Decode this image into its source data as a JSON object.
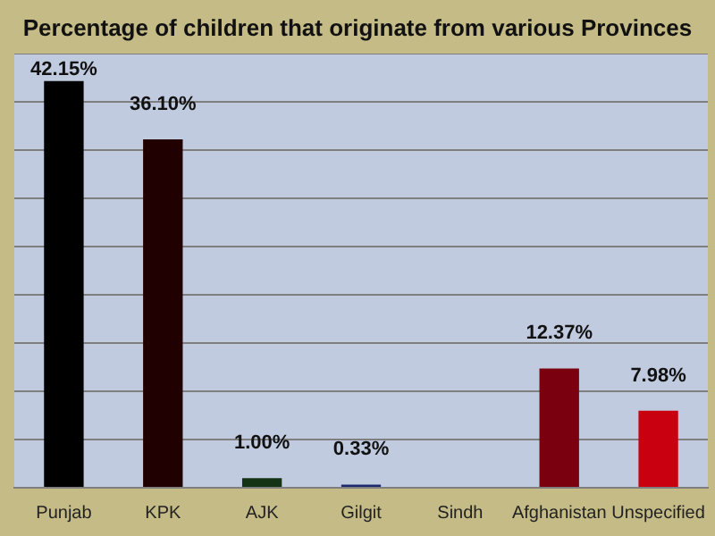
{
  "chart_data": {
    "type": "bar",
    "title": "Percentage of children that originate from various Provinces",
    "categories": [
      "Punjab",
      "KPK",
      "AJK",
      "Gilgit",
      "Sindh",
      "Afghanistan",
      "Unspecified"
    ],
    "values": [
      42.15,
      36.1,
      1.0,
      0.33,
      0,
      12.37,
      7.98
    ],
    "value_labels": [
      "42.15%",
      "36.10%",
      "1.00%",
      "0.33%",
      null,
      "12.37%",
      "7.98%"
    ],
    "colors": [
      "#000000",
      "#200000",
      "#143214",
      "#1e2a6e",
      "#7a0010",
      "#7a0010",
      "#c8000f"
    ],
    "ylim": [
      0,
      45
    ],
    "yticks": [
      {
        "value": 0,
        "label": null
      },
      {
        "value": 5,
        "label": null
      },
      {
        "value": 10,
        "label": null
      },
      {
        "value": 15,
        "label": null
      },
      {
        "value": 20,
        "label": null
      },
      {
        "value": 25,
        "label": null
      },
      {
        "value": 30,
        "label": null
      },
      {
        "value": 35,
        "label": null
      },
      {
        "value": 40,
        "label": null
      },
      {
        "value": 45,
        "label": null
      }
    ],
    "tick_labels": "x",
    "grid": "y",
    "legend": false
  }
}
